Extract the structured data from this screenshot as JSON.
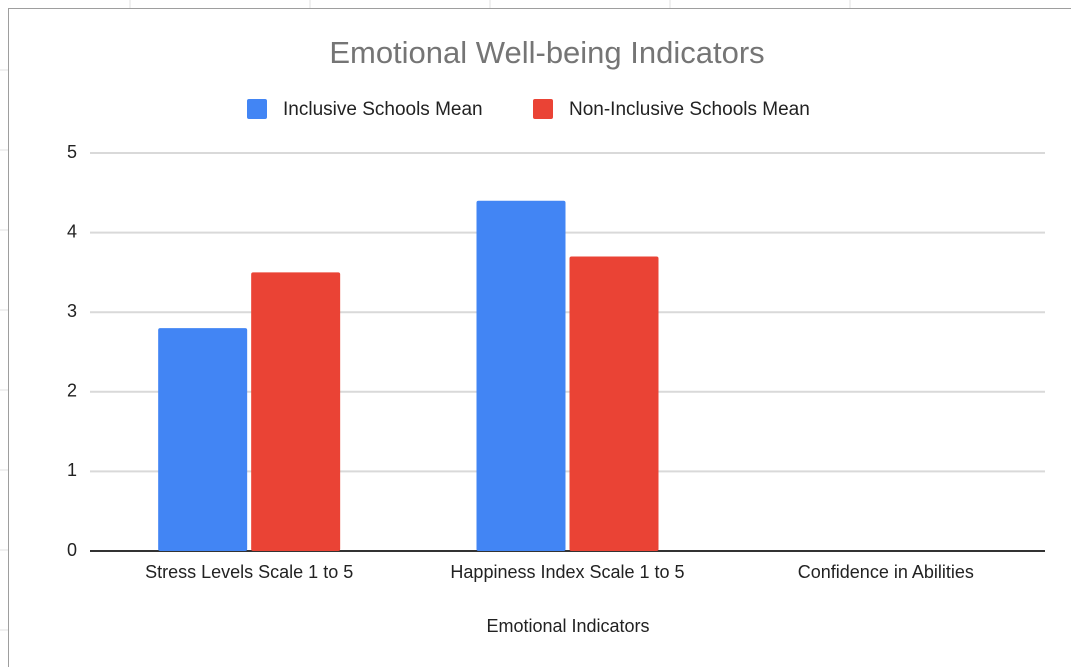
{
  "chart_data": {
    "type": "bar",
    "title": "Emotional Well-being Indicators",
    "x_label": "Emotional Indicators",
    "categories": [
      "Stress Levels Scale 1 to 5",
      "Happiness Index Scale 1 to 5",
      "Confidence in Abilities"
    ],
    "series": [
      {
        "name": "Inclusive Schools Mean",
        "color": "#4285f4",
        "values": [
          2.8,
          4.4,
          null
        ]
      },
      {
        "name": "Non-Inclusive Schools Mean",
        "color": "#ea4335",
        "values": [
          3.5,
          3.7,
          null
        ]
      }
    ],
    "ylim": [
      0,
      5
    ],
    "yticks": [
      0,
      1,
      2,
      3,
      4,
      5
    ],
    "grid": true,
    "legend": "top"
  }
}
